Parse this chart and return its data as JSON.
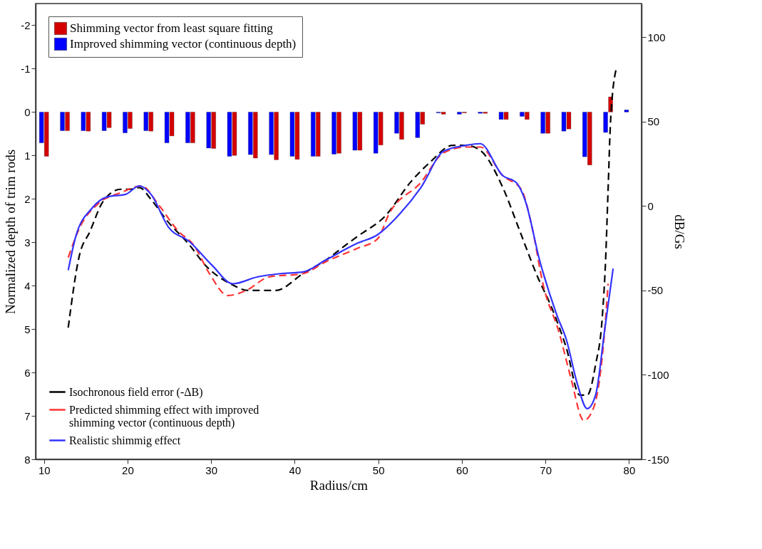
{
  "chart_data": {
    "type": "bar",
    "xlabel": "Radius/cm",
    "ylabel": "Normalized depth of trim rods",
    "y2label": "dB/Gs",
    "x": [
      10,
      12.5,
      15,
      17.5,
      20,
      22.5,
      25,
      27.5,
      30,
      32.5,
      35,
      37.5,
      40,
      42.5,
      45,
      47.5,
      50,
      52.5,
      55,
      57.5,
      60,
      62.5,
      65,
      67.5,
      70,
      72.5,
      75,
      77.5,
      80
    ],
    "series": [
      {
        "name": "Shimming vector from least square fitting",
        "color": "#d40000",
        "values": [
          1.02,
          0.43,
          0.44,
          0.36,
          0.38,
          0.44,
          0.55,
          0.71,
          0.84,
          1.0,
          1.06,
          1.1,
          1.09,
          1.02,
          0.95,
          0.88,
          0.76,
          0.63,
          0.28,
          0.05,
          0.02,
          0.03,
          0.17,
          0.17,
          0.49,
          0.39,
          1.22,
          -0.35,
          null
        ]
      },
      {
        "name": "Improved shimming vector (continuous depth)",
        "color": "#0000ff",
        "values": [
          0.71,
          0.43,
          0.43,
          0.43,
          0.48,
          0.43,
          0.71,
          0.71,
          0.83,
          1.02,
          0.98,
          0.98,
          1.02,
          1.02,
          0.97,
          0.88,
          0.95,
          0.49,
          0.59,
          0.02,
          0.05,
          0.03,
          0.17,
          0.1,
          0.49,
          0.44,
          1.03,
          0.47,
          -0.05
        ]
      },
      {
        "name": "Isochronous field error (-ΔB)",
        "type": "line",
        "axis": "y2",
        "color": "#000000",
        "line_style": "dashed",
        "x": [
          12.9,
          14.2,
          15.5,
          17.1,
          19.2,
          20.4,
          21.4,
          22.8,
          24.7,
          27.4,
          29.3,
          32.3,
          34.5,
          37.7,
          41.0,
          43.7,
          46.4,
          47.5,
          50.8,
          54.0,
          56.2,
          58.9,
          60.5,
          62.2,
          64.9,
          66.8,
          68.9,
          70.9,
          72.5,
          74.1,
          75.0,
          76.0,
          76.8,
          77.2,
          77.5,
          77.8,
          78.5
        ],
        "values": [
          -72,
          -30,
          -15,
          3,
          10,
          10,
          11,
          4,
          -8.5,
          -23,
          -35,
          -46,
          -50,
          -50,
          -40,
          -32,
          -22,
          -18,
          -6,
          15,
          26,
          36,
          36,
          33,
          11,
          -13,
          -40,
          -62,
          -84,
          -112,
          -112,
          -94,
          -66,
          -32,
          10,
          51,
          82
        ]
      },
      {
        "name": "Predicted shimming effect with improved shimming vector (continuous depth)",
        "type": "line",
        "axis": "y2",
        "color": "#ff3333",
        "line_style": "dashed",
        "x": [
          12.9,
          14.3,
          16.5,
          19.2,
          21.7,
          23.6,
          26.1,
          27.9,
          29.8,
          32.0,
          34.2,
          36.9,
          41.0,
          43.7,
          47.5,
          49.9,
          51.3,
          55.1,
          57.8,
          60.5,
          62.2,
          64.9,
          67.1,
          68.4,
          69.7,
          71.7,
          73.0,
          74.6,
          75.8,
          77.1,
          77.5
        ],
        "values": [
          -30.5,
          -12.5,
          1.5,
          8,
          12,
          1.5,
          -15,
          -23,
          -40,
          -53,
          -50,
          -42,
          -40,
          -33,
          -25,
          -19.5,
          -4.5,
          14,
          31.5,
          35,
          35,
          18,
          10,
          -12.5,
          -46,
          -76,
          -101,
          -127,
          -119,
          -73,
          -46
        ]
      },
      {
        "name": "Realistic shimmig effect",
        "type": "line",
        "axis": "y2",
        "color": "#3333ff",
        "line_style": "solid",
        "x": [
          12.9,
          13.8,
          15.7,
          17.6,
          19.8,
          21.4,
          22.8,
          24.9,
          27.4,
          30.1,
          32.6,
          35.5,
          38.3,
          41.0,
          43.7,
          47.5,
          49.9,
          52.6,
          55.1,
          57.8,
          60.5,
          62.2,
          64.9,
          66.5,
          67.6,
          69.3,
          71.4,
          72.5,
          73.8,
          75.0,
          76.0,
          77.1,
          78.1
        ],
        "values": [
          -38,
          -18,
          -1.5,
          5.5,
          7,
          12,
          7,
          -12.5,
          -21,
          -35,
          -46,
          -42,
          -40,
          -39,
          -32,
          -22,
          -17,
          -4.5,
          11,
          32.5,
          36,
          37,
          18,
          14,
          3,
          -32,
          -65,
          -79,
          -105,
          -120,
          -112,
          -73,
          -37
        ]
      }
    ],
    "xlim": [
      9,
      81.5
    ],
    "xticks": [
      10,
      20,
      30,
      40,
      50,
      60,
      70,
      80
    ],
    "ylim": [
      8,
      -2.5
    ],
    "yticks": [
      -2,
      -1,
      0,
      1,
      2,
      3,
      4,
      5,
      6,
      7,
      8
    ],
    "y2lim": [
      -150,
      120
    ],
    "y2ticks": [
      -150,
      -100,
      -50,
      0,
      50,
      100
    ],
    "grid": false,
    "legend": "left"
  }
}
